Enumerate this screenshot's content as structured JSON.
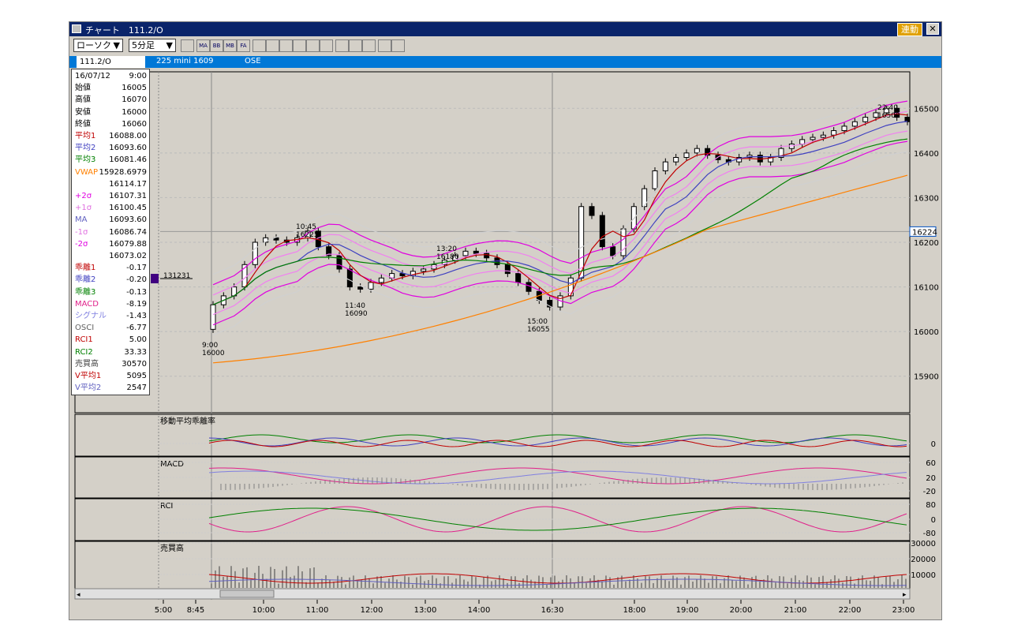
{
  "window": {
    "title": "チャート　111.2/O",
    "link_label": "連動",
    "close_label": "✕"
  },
  "toolbar": {
    "chart_type": "ローソク",
    "interval": "5分足",
    "tools": [
      "grid-icon",
      "ma-icon",
      "bb-icon",
      "mb-icon",
      "fa-icon",
      "line-chart-icon",
      "candle-chart-icon",
      "bar-chart-icon",
      "zoom-icon",
      "kanji-icon",
      "column-icon",
      "pen-icon",
      "cursor-icon",
      "eraser-icon",
      "search-person-icon",
      "fibonacci-icon"
    ],
    "tool_labels": [
      "",
      "MA",
      "BB",
      "MB",
      "FA",
      "",
      "",
      "",
      "",
      "",
      "",
      "",
      "",
      "",
      "",
      ""
    ]
  },
  "infobar": {
    "symbol": "111.2/O",
    "instrument": "225 mini 1609",
    "exchange": "OSE"
  },
  "data_panel": [
    {
      "k": "16/07/12",
      "v": "9:00",
      "c": "#000000"
    },
    {
      "k": "始値",
      "v": "16005",
      "c": "#000000"
    },
    {
      "k": "高値",
      "v": "16070",
      "c": "#000000"
    },
    {
      "k": "安値",
      "v": "16000",
      "c": "#000000"
    },
    {
      "k": "終値",
      "v": "16060",
      "c": "#000000"
    },
    {
      "k": "平均1",
      "v": "16088.00",
      "c": "#c00000"
    },
    {
      "k": "平均2",
      "v": "16093.60",
      "c": "#4040c0"
    },
    {
      "k": "平均3",
      "v": "16081.46",
      "c": "#008000"
    },
    {
      "k": "VWAP",
      "v": "15928.6979",
      "c": "#ff8000"
    },
    {
      "k": "",
      "v": "16114.17",
      "c": "#000000"
    },
    {
      "k": "+2σ",
      "v": "16107.31",
      "c": "#e000e0"
    },
    {
      "k": "+1σ",
      "v": "16100.45",
      "c": "#e070e0"
    },
    {
      "k": "MA",
      "v": "16093.60",
      "c": "#6060c0"
    },
    {
      "k": "-1σ",
      "v": "16086.74",
      "c": "#e070e0"
    },
    {
      "k": "-2σ",
      "v": "16079.88",
      "c": "#e000e0"
    },
    {
      "k": "",
      "v": "16073.02",
      "c": "#000000"
    },
    {
      "k": "乖離1",
      "v": "-0.17",
      "c": "#c00000"
    },
    {
      "k": "乖離2",
      "v": "-0.20",
      "c": "#4040c0"
    },
    {
      "k": "乖離3",
      "v": "-0.13",
      "c": "#008000"
    },
    {
      "k": "MACD",
      "v": "-8.19",
      "c": "#e0208a"
    },
    {
      "k": "シグナル",
      "v": "-1.43",
      "c": "#8080e0"
    },
    {
      "k": "OSCI",
      "v": "-6.77",
      "c": "#606060"
    },
    {
      "k": "RCI1",
      "v": "5.00",
      "c": "#c00000"
    },
    {
      "k": "RCI2",
      "v": "33.33",
      "c": "#008000"
    },
    {
      "k": "売買高",
      "v": "30570",
      "c": "#404040"
    },
    {
      "k": "V平均1",
      "v": "5095",
      "c": "#c00000"
    },
    {
      "k": "V平均2",
      "v": "2547",
      "c": "#6060c0"
    }
  ],
  "price_axis": {
    "ticks": [
      "16500",
      "16400",
      "16300",
      "16200",
      "16100",
      "16000",
      "15900"
    ],
    "current": "16224"
  },
  "panels": {
    "deviation": {
      "title": "移動平均乖離率",
      "ticks": [
        "0"
      ]
    },
    "macd": {
      "title": "MACD",
      "ticks": [
        "60",
        "20",
        "-20"
      ]
    },
    "rci": {
      "title": "RCI",
      "ticks": [
        "80",
        "0",
        "-80"
      ]
    },
    "volume": {
      "title": "売買高",
      "ticks": [
        "30000",
        "20000",
        "10000"
      ]
    }
  },
  "annotations": [
    {
      "t1": "10:45",
      "t2": "16225"
    },
    {
      "t1": "13:20",
      "t2": "16180"
    },
    {
      "t1": "11:40",
      "t2": "16090"
    },
    {
      "t1": "15:00",
      "t2": "16055"
    },
    {
      "t1": "9:00",
      "t2": "16000"
    },
    {
      "t1": "22:40",
      "t2": "16500"
    }
  ],
  "cursor_label": "131231",
  "time_axis": [
    "5:00",
    "8:45",
    "10:00",
    "11:00",
    "12:00",
    "13:00",
    "14:00",
    "16:30",
    "18:00",
    "19:00",
    "20:00",
    "21:00",
    "22:00",
    "23:00"
  ],
  "chart_data": {
    "type": "candlestick",
    "symbol": "225 mini 1609",
    "interval": "5分足",
    "y_range": [
      15820,
      16580
    ],
    "close_series": [
      16060,
      16080,
      16100,
      16150,
      16200,
      16210,
      16205,
      16200,
      16210,
      16225,
      16190,
      16170,
      16140,
      16100,
      16095,
      16110,
      16120,
      16130,
      16125,
      16135,
      16140,
      16150,
      16160,
      16170,
      16180,
      16175,
      16165,
      16150,
      16130,
      16110,
      16090,
      16070,
      16055,
      16080,
      16120,
      16280,
      16260,
      16190,
      16170,
      16230,
      16280,
      16320,
      16360,
      16380,
      16390,
      16400,
      16410,
      16395,
      16385,
      16380,
      16390,
      16395,
      16380,
      16390,
      16410,
      16420,
      16430,
      16435,
      16440,
      16450,
      16460,
      16470,
      16480,
      16490,
      16500,
      16480,
      16470
    ],
    "yticks": [
      16500,
      16400,
      16300,
      16200,
      16100,
      16000,
      15900
    ],
    "current_price": 16224
  }
}
